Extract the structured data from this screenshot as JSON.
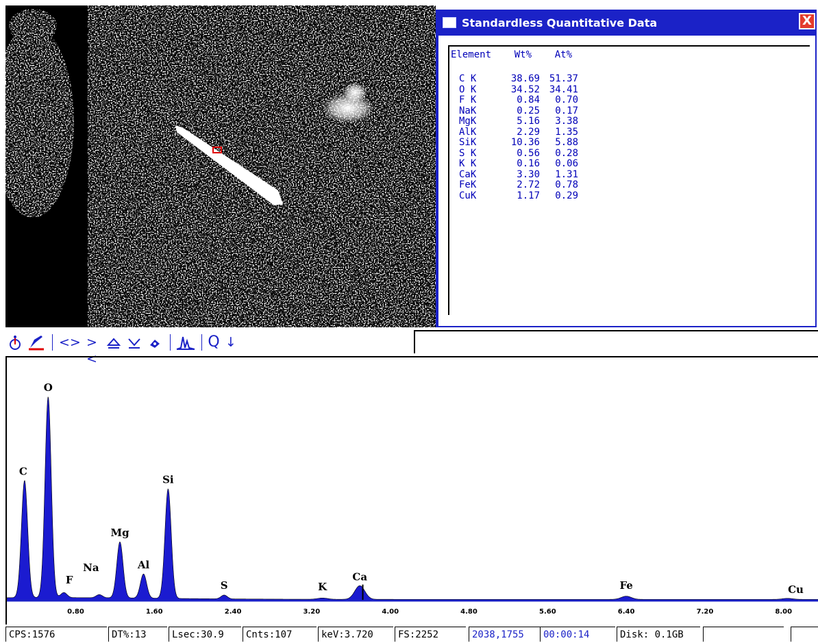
{
  "window": {
    "title": "Standardless Quantitative Data",
    "close_label": "X",
    "header": "Element    Wt%    At%",
    "rows": [
      {
        "element": "C K",
        "wt": "38.69",
        "at": "51.37"
      },
      {
        "element": "O K",
        "wt": "34.52",
        "at": "34.41"
      },
      {
        "element": "F K",
        "wt": "0.84",
        "at": "0.70"
      },
      {
        "element": "NaK",
        "wt": "0.25",
        "at": "0.17"
      },
      {
        "element": "MgK",
        "wt": "5.16",
        "at": "3.38"
      },
      {
        "element": "AlK",
        "wt": "2.29",
        "at": "1.35"
      },
      {
        "element": "SiK",
        "wt": "10.36",
        "at": "5.88"
      },
      {
        "element": "S K",
        "wt": "0.56",
        "at": "0.28"
      },
      {
        "element": "K K",
        "wt": "0.16",
        "at": "0.06"
      },
      {
        "element": "CaK",
        "wt": "3.30",
        "at": "1.31"
      },
      {
        "element": "FeK",
        "wt": "2.72",
        "at": "0.78"
      },
      {
        "element": "CuK",
        "wt": "1.17",
        "at": "0.29"
      }
    ]
  },
  "toolbar": {
    "probe_icon": "probe-icon",
    "mark_icon": "marker-icon",
    "expand": "<>",
    "shrink": "><",
    "scale_up": "⏶",
    "scale_down": "⏷",
    "fill_icon": "fill-icon",
    "peaks_icon": "peak-id-icon",
    "zoom_label": "Q",
    "arrow_label": "↓"
  },
  "chart_data": {
    "type": "line",
    "xlabel": "",
    "ylabel": "",
    "x_ticks": [
      "0.80",
      "1.60",
      "2.40",
      "3.20",
      "4.00",
      "4.80",
      "5.60",
      "6.40",
      "7.20",
      "8.00"
    ],
    "xlim": [
      0.1,
      8.35
    ],
    "ylim": [
      0,
      1600
    ],
    "series_color": "#1b1bd0",
    "peaks": [
      {
        "label": "C",
        "x": 0.28,
        "y": 920
      },
      {
        "label": "O",
        "x": 0.52,
        "y": 1576
      },
      {
        "label": "F",
        "x": 0.68,
        "y": 40
      },
      {
        "label": "Na",
        "x": 1.04,
        "y": 25
      },
      {
        "label": "Mg",
        "x": 1.25,
        "y": 440
      },
      {
        "label": "Al",
        "x": 1.49,
        "y": 190
      },
      {
        "label": "Si",
        "x": 1.74,
        "y": 860
      },
      {
        "label": "S",
        "x": 2.31,
        "y": 30
      },
      {
        "label": "K",
        "x": 3.31,
        "y": 10
      },
      {
        "label": "Ca",
        "x": 3.69,
        "y": 107
      },
      {
        "label": "Fe",
        "x": 6.4,
        "y": 25
      },
      {
        "label": "Cu",
        "x": 8.04,
        "y": 8
      }
    ]
  },
  "status": {
    "cps": "CPS:1576",
    "dt": "DT%:13",
    "lsec": "Lsec:30.9",
    "cnts": "Cnts:107",
    "kev": "keV:3.720",
    "fs": "FS:2252",
    "coords": "2038,1755",
    "time": "00:00:14",
    "disk": "Disk: 0.1GB"
  },
  "colors": {
    "accent_blue": "#1b22c7",
    "close_red": "#e43b2d",
    "marker_red": "#e00000"
  }
}
